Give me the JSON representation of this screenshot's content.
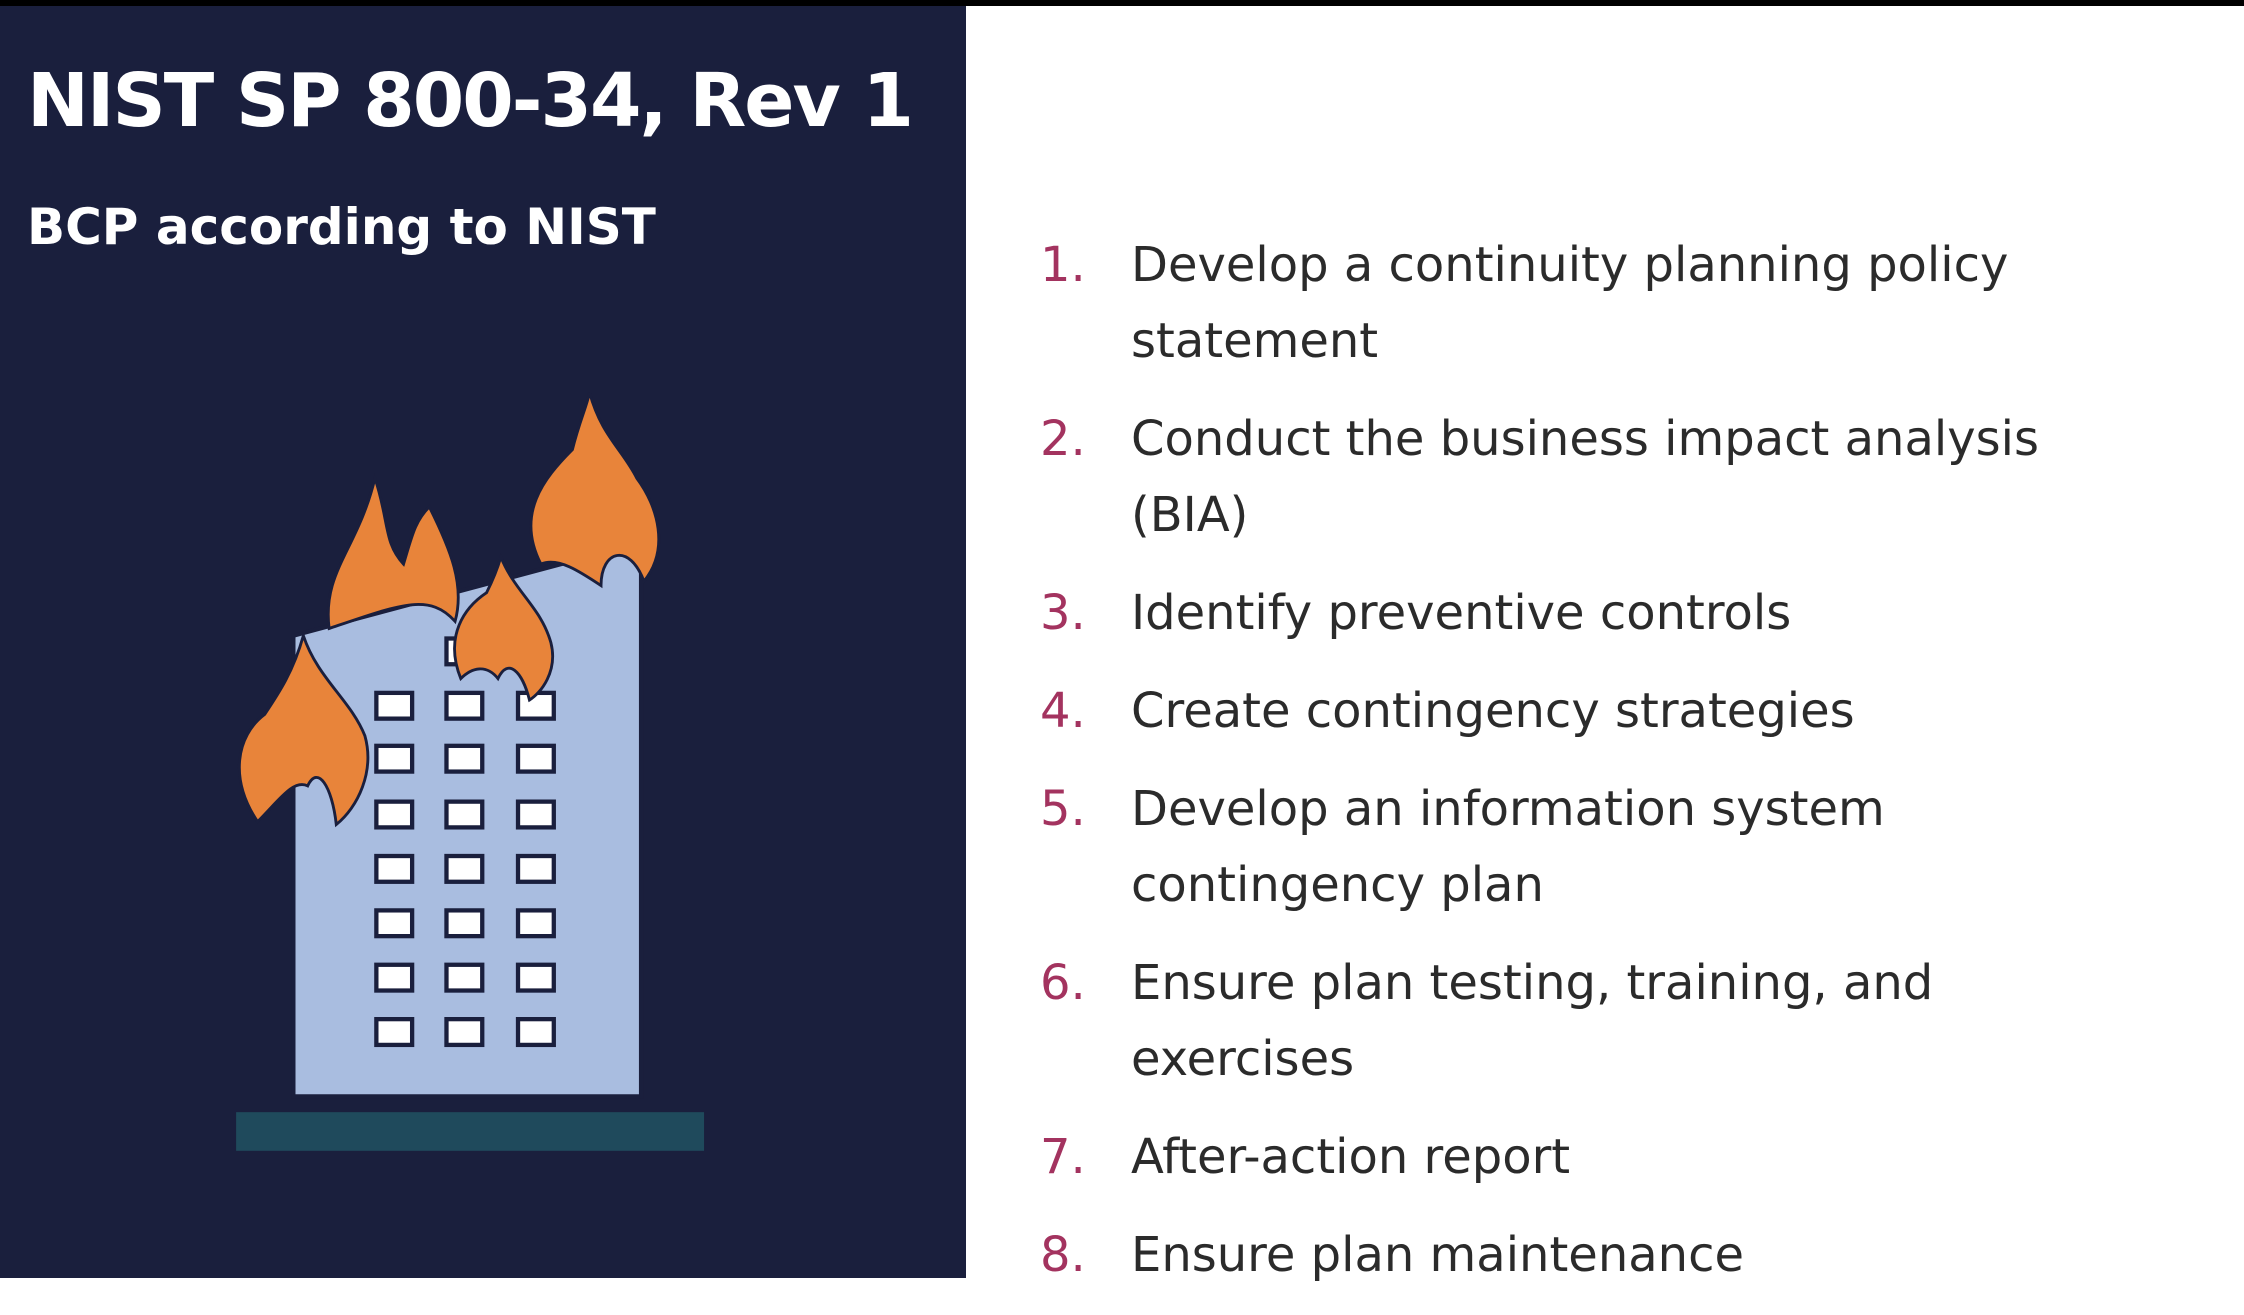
{
  "header": {
    "title": "NIST SP 800-34, Rev 1",
    "subtitle": "BCP according to NIST"
  },
  "list": {
    "items": [
      {
        "number": "1.",
        "text": "Develop a continuity planning policy statement"
      },
      {
        "number": "2.",
        "text": "Conduct the business impact analysis (BIA)"
      },
      {
        "number": "3.",
        "text": "Identify preventive controls"
      },
      {
        "number": "4.",
        "text": "Create contingency strategies"
      },
      {
        "number": "5.",
        "text": "Develop an information system contingency plan"
      },
      {
        "number": "6.",
        "text": "Ensure plan testing, training, and exercises"
      },
      {
        "number": "7.",
        "text": "After-action report"
      },
      {
        "number": "8.",
        "text": "Ensure plan maintenance"
      }
    ]
  }
}
